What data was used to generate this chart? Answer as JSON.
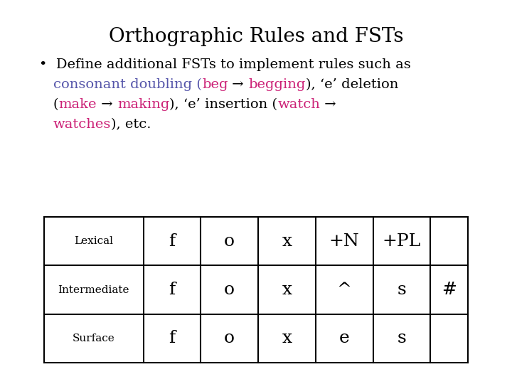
{
  "title": "Orthographic Rules and FSTs",
  "title_fontsize": 20,
  "bg_color": "#ffffff",
  "black": "#000000",
  "blue": "#5555aa",
  "pink": "#cc2277",
  "bullet_line1": "•  Define additional FSTs to implement rules such as",
  "fontsize_body": 14,
  "fontsize_label": 11,
  "fontsize_cell": 18,
  "table_rows": [
    "Lexical",
    "Intermediate",
    "Surface"
  ],
  "table_data": [
    [
      "f",
      "o",
      "x",
      "+N",
      "+PL",
      ""
    ],
    [
      "f",
      "o",
      "x",
      "^",
      "s",
      "#"
    ],
    [
      "f",
      "o",
      "x",
      "e",
      "s",
      ""
    ]
  ]
}
